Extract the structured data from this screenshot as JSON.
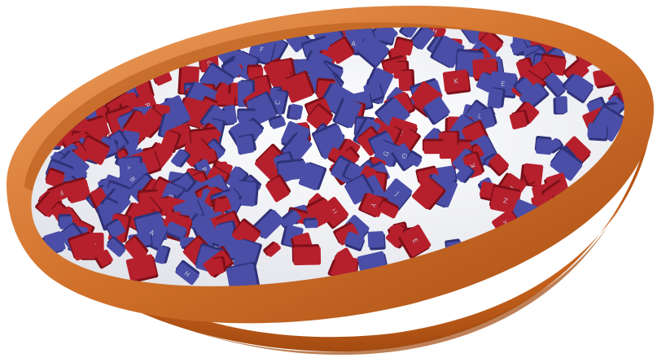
{
  "scene": {
    "colors": {
      "background": "#ffffff",
      "bowl_outer": "#c9621c",
      "bowl_shadow": "#8f3f0c",
      "bowl_rim": "#e07d33",
      "milk": "#eef0f4",
      "key_red": "#b5202c",
      "key_red_side": "#7c1019",
      "key_blue": "#4a4ea6",
      "key_blue_side": "#2f3278",
      "key_letter": "#c8c8d8"
    },
    "key_letters": [
      "F",
      "G",
      "H",
      "E",
      "B",
      "R",
      "U",
      "J",
      "N",
      "Y",
      "C",
      "Z",
      "A",
      "M",
      "E",
      "R",
      "H",
      "G",
      "K",
      "F",
      "B",
      "Y",
      "J",
      "E",
      "R",
      "H"
    ]
  }
}
